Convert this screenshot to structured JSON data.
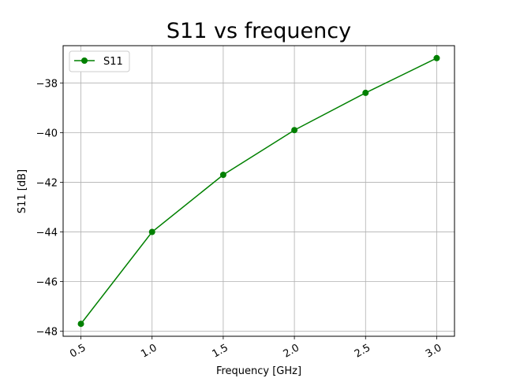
{
  "chart_data": {
    "type": "line",
    "title": "S11 vs frequency",
    "xlabel": "Frequency [GHz]",
    "ylabel": "S11 [dB]",
    "xlim": [
      0.375,
      3.125
    ],
    "ylim": [
      -48.2,
      -36.5
    ],
    "xticks": [
      0.5,
      1.0,
      1.5,
      2.0,
      2.5,
      3.0
    ],
    "xtick_labels": [
      "0.5",
      "1.0",
      "1.5",
      "2.0",
      "2.5",
      "3.0"
    ],
    "yticks": [
      -48,
      -46,
      -44,
      -42,
      -40,
      -38
    ],
    "ytick_labels": [
      "−48",
      "−46",
      "−44",
      "−42",
      "−40",
      "−38"
    ],
    "xtick_rotation_deg": 30,
    "grid": true,
    "legend_position": "top-left",
    "series": [
      {
        "name": "S11",
        "color": "#008000",
        "marker": "circle",
        "x": [
          0.5,
          1.0,
          1.5,
          2.0,
          2.5,
          3.0
        ],
        "y": [
          -47.7,
          -44.0,
          -41.7,
          -39.9,
          -38.4,
          -37.0
        ]
      }
    ]
  }
}
